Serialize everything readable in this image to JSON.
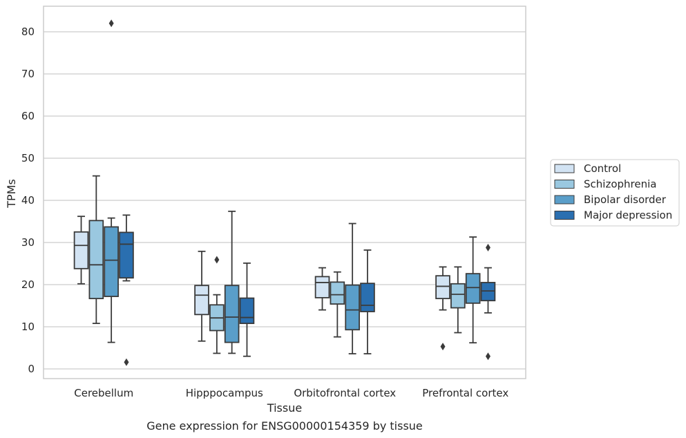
{
  "chart_data": {
    "type": "box",
    "xlabel": "Tissue",
    "ylabel": "TPMs",
    "caption": "Gene expression for ENSG00000154359 by tissue",
    "ylim": [
      -2,
      86
    ],
    "yticks": [
      0,
      10,
      20,
      30,
      40,
      50,
      60,
      70,
      80
    ],
    "grid": "horizontal",
    "legend_position": "right",
    "categories": [
      "Cerebellum",
      "Hipppocampus",
      "Orbitofrontal cortex",
      "Prefrontal cortex"
    ],
    "series": [
      {
        "name": "Control",
        "color": "#d2e3f3",
        "boxes": [
          {
            "whislo": 20.2,
            "q1": 23.8,
            "med": 29.3,
            "q3": 32.5,
            "whishi": 36.2,
            "fliers": []
          },
          {
            "whislo": 6.6,
            "q1": 12.9,
            "med": 17.5,
            "q3": 19.8,
            "whishi": 27.9,
            "fliers": []
          },
          {
            "whislo": 14.0,
            "q1": 16.9,
            "med": 20.5,
            "q3": 21.9,
            "whishi": 24.0,
            "fliers": []
          },
          {
            "whislo": 14.0,
            "q1": 16.7,
            "med": 19.6,
            "q3": 22.1,
            "whishi": 24.2,
            "fliers": [
              5.3
            ]
          }
        ]
      },
      {
        "name": "Schizophrenia",
        "color": "#9ac8e0",
        "boxes": [
          {
            "whislo": 10.8,
            "q1": 16.7,
            "med": 24.7,
            "q3": 35.2,
            "whishi": 45.8,
            "fliers": []
          },
          {
            "whislo": 3.7,
            "q1": 9.1,
            "med": 12.1,
            "q3": 15.2,
            "whishi": 17.6,
            "fliers": [
              25.9
            ]
          },
          {
            "whislo": 7.6,
            "q1": 15.4,
            "med": 17.6,
            "q3": 20.6,
            "whishi": 23.0,
            "fliers": []
          },
          {
            "whislo": 8.6,
            "q1": 14.5,
            "med": 17.7,
            "q3": 20.2,
            "whishi": 24.2,
            "fliers": []
          }
        ]
      },
      {
        "name": "Bipolar disorder",
        "color": "#5a9ec9",
        "boxes": [
          {
            "whislo": 6.3,
            "q1": 17.2,
            "med": 25.8,
            "q3": 33.7,
            "whishi": 35.8,
            "fliers": [
              82.0
            ]
          },
          {
            "whislo": 3.7,
            "q1": 6.3,
            "med": 12.3,
            "q3": 19.8,
            "whishi": 37.4,
            "fliers": []
          },
          {
            "whislo": 3.6,
            "q1": 9.3,
            "med": 14.0,
            "q3": 19.9,
            "whishi": 34.5,
            "fliers": []
          },
          {
            "whislo": 6.2,
            "q1": 15.6,
            "med": 19.3,
            "q3": 22.6,
            "whishi": 31.3,
            "fliers": []
          }
        ]
      },
      {
        "name": "Major depression",
        "color": "#2a6fb0",
        "boxes": [
          {
            "whislo": 20.9,
            "q1": 21.6,
            "med": 29.6,
            "q3": 32.4,
            "whishi": 36.5,
            "fliers": [
              1.6
            ]
          },
          {
            "whislo": 3.0,
            "q1": 10.8,
            "med": 12.2,
            "q3": 16.8,
            "whishi": 25.1,
            "fliers": []
          },
          {
            "whislo": 3.6,
            "q1": 13.6,
            "med": 15.1,
            "q3": 20.3,
            "whishi": 28.2,
            "fliers": []
          },
          {
            "whislo": 13.3,
            "q1": 16.2,
            "med": 18.5,
            "q3": 20.5,
            "whishi": 24.0,
            "fliers": [
              28.8,
              3.0
            ]
          }
        ]
      }
    ]
  }
}
